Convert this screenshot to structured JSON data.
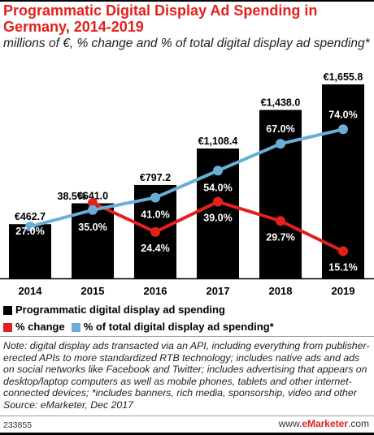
{
  "title": "Programmatic Digital Display Ad Spending in Germany, 2014-2019",
  "subtitle": "millions of €, % change and % of total digital display ad spending*",
  "chart_data": {
    "type": "bar",
    "categories": [
      "2014",
      "2015",
      "2016",
      "2017",
      "2018",
      "2019"
    ],
    "series": [
      {
        "name": "Programmatic digital display ad spending",
        "type": "bar",
        "values": [
          462.7,
          641.0,
          797.2,
          1108.4,
          1438.0,
          1655.8
        ],
        "labels": [
          "€462.7",
          "€641.0",
          "€797.2",
          "€1,108.4",
          "€1,438.0",
          "€1,655.8"
        ],
        "color": "#000000"
      },
      {
        "name": "% change",
        "type": "line",
        "values": [
          null,
          38.5,
          24.4,
          39.0,
          29.7,
          15.1
        ],
        "labels": [
          "",
          "38.5%",
          "24.4%",
          "39.0%",
          "29.7%",
          "15.1%"
        ],
        "color": "#e3201b"
      },
      {
        "name": "% of total digital display ad spending*",
        "type": "line",
        "values": [
          27.0,
          35.0,
          41.0,
          54.0,
          67.0,
          74.0
        ],
        "labels": [
          "27.0%",
          "35.0%",
          "41.0%",
          "54.0%",
          "67.0%",
          "74.0%"
        ],
        "color": "#6aaed6"
      }
    ],
    "grid": false,
    "legend": "bottom"
  },
  "legend": {
    "bar": "Programmatic digital display ad spending",
    "change": "% change",
    "share": "% of total digital display ad spending*"
  },
  "note": "Note: digital display ads transacted via an API, including everything from publisher-erected APIs to more standardized RTB technology; includes native ads and ads on social networks like Facebook and Twitter; includes advertising that appears on desktop/laptop computers as well as mobile phones, tablets and other internet-connected devices; *includes banners, rich media, sponsorship, video and other",
  "source": "Source: eMarketer, Dec 2017",
  "footer": {
    "id": "233855",
    "brand_prefix": "www.",
    "brand_name": "eMarketer",
    "brand_suffix": ".com"
  }
}
